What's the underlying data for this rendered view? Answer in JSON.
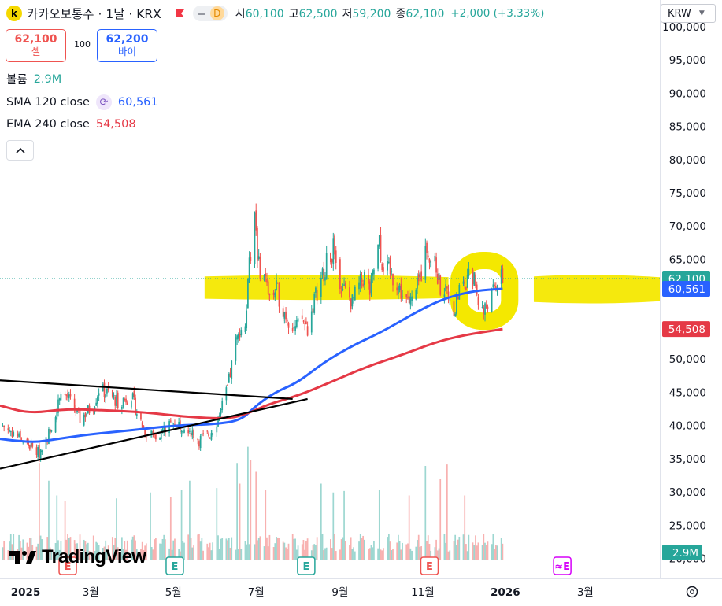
{
  "header": {
    "symbol_logo": "k",
    "title": "카카오보통주 · 1날 · KRX",
    "ohlc": [
      {
        "k": "시",
        "v": "60,100"
      },
      {
        "k": "고",
        "v": "62,500"
      },
      {
        "k": "저",
        "v": "59,200"
      },
      {
        "k": "종",
        "v": "62,100"
      }
    ],
    "change": "+2,000 (+3.33%)",
    "currency": "KRW",
    "delay_badge": "D"
  },
  "trade": {
    "sell_price": "62,100",
    "sell_label": "셀",
    "spread": "100",
    "buy_price": "62,200",
    "buy_label": "바이"
  },
  "indicators": {
    "volume_label": "볼륨",
    "volume_value": "2.9M",
    "sma_label": "SMA 120 close",
    "sma_value": "60,561",
    "ema_label": "EMA 240 close",
    "ema_value": "54,508"
  },
  "colors": {
    "up": "#26a69a",
    "down": "#ef5350",
    "sma": "#2962ff",
    "ema": "#e53946",
    "highlight": "#f4e800",
    "trendline": "#000000"
  },
  "branding": {
    "logo_text": "TradingView"
  },
  "chart_data": {
    "type": "candlestick",
    "price_axis": {
      "ticks": [
        "100,000",
        "95,000",
        "90,000",
        "85,000",
        "80,000",
        "75,000",
        "70,000",
        "65,000",
        "60,000",
        "55,000",
        "50,000",
        "45,000",
        "40,000",
        "35,000",
        "30,000",
        "25,000",
        "20,000"
      ],
      "range": [
        17000,
        104000
      ]
    },
    "time_axis": {
      "labels": [
        "2025",
        "3월",
        "5월",
        "7월",
        "9월",
        "11월",
        "2026",
        "3월"
      ],
      "range": [
        "2024-12-24",
        "2026-04-25"
      ]
    },
    "last_price": {
      "label": "62,100",
      "value": 62100
    },
    "price_labels": [
      {
        "label": "60,561",
        "value": 60561,
        "series": "sma"
      },
      {
        "label": "54,508",
        "value": 54508,
        "series": "ema"
      }
    ],
    "volume_label": "2.9M",
    "close": [
      [
        "2024-12-26",
        40000
      ],
      [
        "2025-01-06",
        38500
      ],
      [
        "2025-01-14",
        37000
      ],
      [
        "2025-01-22",
        35800
      ],
      [
        "2025-02-03",
        41000
      ],
      [
        "2025-02-07",
        45800
      ],
      [
        "2025-02-14",
        43500
      ],
      [
        "2025-02-21",
        41000
      ],
      [
        "2025-03-03",
        43000
      ],
      [
        "2025-03-07",
        45500
      ],
      [
        "2025-03-14",
        44800
      ],
      [
        "2025-03-21",
        43500
      ],
      [
        "2025-03-31",
        44500
      ],
      [
        "2025-04-04",
        42000
      ],
      [
        "2025-04-10",
        39000
      ],
      [
        "2025-04-18",
        38500
      ],
      [
        "2025-04-25",
        39500
      ],
      [
        "2025-05-02",
        40500
      ],
      [
        "2025-05-12",
        39800
      ],
      [
        "2025-05-20",
        37800
      ],
      [
        "2025-05-28",
        38800
      ],
      [
        "2025-06-04",
        41500
      ],
      [
        "2025-06-10",
        45500
      ],
      [
        "2025-06-13",
        49000
      ],
      [
        "2025-06-16",
        52500
      ],
      [
        "2025-06-19",
        53800
      ],
      [
        "2025-06-23",
        56000
      ],
      [
        "2025-06-25",
        61500
      ],
      [
        "2025-06-27",
        66000
      ],
      [
        "2025-06-30",
        70500
      ],
      [
        "2025-07-03",
        64000
      ],
      [
        "2025-07-08",
        62000
      ],
      [
        "2025-07-11",
        59000
      ],
      [
        "2025-07-16",
        60500
      ],
      [
        "2025-07-21",
        57500
      ],
      [
        "2025-07-25",
        56000
      ],
      [
        "2025-07-30",
        54500
      ],
      [
        "2025-08-04",
        56000
      ],
      [
        "2025-08-08",
        54500
      ],
      [
        "2025-08-13",
        59000
      ],
      [
        "2025-08-18",
        62000
      ],
      [
        "2025-08-22",
        64500
      ],
      [
        "2025-08-27",
        66500
      ],
      [
        "2025-09-01",
        62000
      ],
      [
        "2025-09-05",
        60000
      ],
      [
        "2025-09-10",
        58500
      ],
      [
        "2025-09-15",
        61000
      ],
      [
        "2025-09-19",
        62500
      ],
      [
        "2025-09-23",
        60000
      ],
      [
        "2025-09-26",
        63500
      ],
      [
        "2025-09-30",
        67500
      ],
      [
        "2025-10-02",
        64500
      ],
      [
        "2025-10-13",
        61500
      ],
      [
        "2025-10-17",
        59500
      ],
      [
        "2025-10-22",
        58000
      ],
      [
        "2025-10-27",
        60000
      ],
      [
        "2025-10-31",
        63000
      ],
      [
        "2025-11-03",
        68500
      ],
      [
        "2025-11-06",
        65500
      ],
      [
        "2025-11-10",
        64000
      ],
      [
        "2025-11-14",
        61000
      ],
      [
        "2025-11-18",
        60500
      ],
      [
        "2025-11-21",
        58000
      ],
      [
        "2025-11-25",
        57800
      ],
      [
        "2025-11-28",
        60500
      ],
      [
        "2025-12-03",
        61500
      ],
      [
        "2025-12-08",
        62800
      ],
      [
        "2025-12-12",
        59000
      ],
      [
        "2025-12-16",
        57000
      ],
      [
        "2025-12-19",
        58500
      ],
      [
        "2025-12-23",
        60000
      ],
      [
        "2025-12-26",
        61500
      ],
      [
        "2025-12-30",
        62100
      ]
    ],
    "volume": [
      [
        "2025-01-22",
        33000
      ],
      [
        "2025-01-29",
        27000
      ],
      [
        "2025-02-04",
        22000
      ],
      [
        "2025-02-10",
        20000
      ],
      [
        "2025-03-20",
        21000
      ],
      [
        "2025-04-14",
        23000
      ],
      [
        "2025-04-29",
        21500
      ],
      [
        "2025-05-07",
        24000
      ],
      [
        "2025-05-13",
        27000
      ],
      [
        "2025-06-02",
        24500
      ],
      [
        "2025-06-17",
        33000
      ],
      [
        "2025-06-19",
        26000
      ],
      [
        "2025-06-25",
        38500
      ],
      [
        "2025-06-27",
        34000
      ],
      [
        "2025-07-01",
        30000
      ],
      [
        "2025-07-08",
        24000
      ],
      [
        "2025-08-18",
        26000
      ],
      [
        "2025-08-27",
        23000
      ],
      [
        "2025-09-04",
        23500
      ],
      [
        "2025-09-30",
        24000
      ],
      [
        "2025-10-22",
        22000
      ],
      [
        "2025-11-03",
        32000
      ],
      [
        "2025-11-14",
        27500
      ],
      [
        "2025-11-19",
        32500
      ],
      [
        "2025-12-02",
        22000
      ]
    ],
    "series": [
      {
        "name": "SMA 120 close",
        "values": [
          [
            "2024-12-24",
            38000
          ],
          [
            "2025-01-05",
            37700
          ],
          [
            "2025-01-20",
            37500
          ],
          [
            "2025-02-05",
            38000
          ],
          [
            "2025-03-01",
            38700
          ],
          [
            "2025-04-01",
            39300
          ],
          [
            "2025-05-01",
            40000
          ],
          [
            "2025-06-01",
            40200
          ],
          [
            "2025-06-20",
            40800
          ],
          [
            "2025-07-01",
            43000
          ],
          [
            "2025-07-15",
            45000
          ],
          [
            "2025-08-01",
            46500
          ],
          [
            "2025-08-20",
            49500
          ],
          [
            "2025-09-10",
            52000
          ],
          [
            "2025-10-01",
            54000
          ],
          [
            "2025-10-20",
            56200
          ],
          [
            "2025-11-05",
            58000
          ],
          [
            "2025-11-20",
            59300
          ],
          [
            "2025-12-10",
            60300
          ],
          [
            "2025-12-30",
            60561
          ]
        ]
      },
      {
        "name": "EMA 240 close",
        "values": [
          [
            "2024-12-24",
            43000
          ],
          [
            "2025-01-15",
            41800
          ],
          [
            "2025-02-10",
            42500
          ],
          [
            "2025-03-10",
            42300
          ],
          [
            "2025-04-10",
            42000
          ],
          [
            "2025-05-10",
            41300
          ],
          [
            "2025-06-10",
            41000
          ],
          [
            "2025-06-25",
            41800
          ],
          [
            "2025-07-10",
            43200
          ],
          [
            "2025-08-01",
            44500
          ],
          [
            "2025-08-25",
            46500
          ],
          [
            "2025-09-20",
            48800
          ],
          [
            "2025-10-15",
            50500
          ],
          [
            "2025-11-10",
            52500
          ],
          [
            "2025-12-01",
            53600
          ],
          [
            "2025-12-30",
            54508
          ]
        ]
      }
    ],
    "trendlines": [
      {
        "from": [
          "2024-12-24",
          46800
        ],
        "to": [
          "2025-07-28",
          44000
        ]
      },
      {
        "from": [
          "2024-12-24",
          33500
        ],
        "to": [
          "2025-08-08",
          44000
        ]
      }
    ],
    "highlights": [
      {
        "from": [
          "2025-05-24",
          59000
        ],
        "to": [
          "2025-11-20",
          62500
        ],
        "shape": "band"
      },
      {
        "from": [
          "2025-11-22",
          54500
        ],
        "to": [
          "2026-01-10",
          66000
        ],
        "shape": "loop"
      },
      {
        "from": [
          "2026-01-22",
          58500
        ],
        "to": [
          "2026-04-25",
          62500
        ],
        "shape": "band"
      }
    ],
    "events": [
      {
        "label": "E",
        "date": "2025-02-12",
        "color": "#ef5350"
      },
      {
        "label": "E",
        "date": "2025-05-02",
        "color": "#26a69a"
      },
      {
        "label": "E",
        "date": "2025-08-07",
        "color": "#26a69a"
      },
      {
        "label": "E",
        "date": "2025-11-06",
        "color": "#ef5350"
      },
      {
        "label": "≈E",
        "date": "2026-02-12",
        "color": "#d500f9"
      }
    ]
  }
}
